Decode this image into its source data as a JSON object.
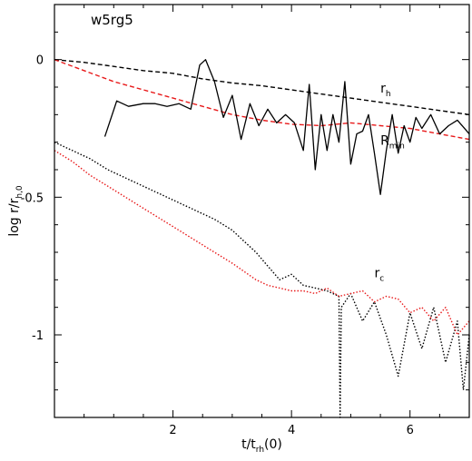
{
  "chart_data": {
    "type": "line",
    "title": "w5rg5",
    "xlabel": {
      "main": "t/t",
      "sub": "rh",
      "suffix": "(0)"
    },
    "ylabel": {
      "main": "log r/r",
      "sub": "h,0"
    },
    "xlim": [
      0,
      7
    ],
    "ylim": [
      -1.3,
      0.2
    ],
    "xticks": [
      2,
      4,
      6
    ],
    "yticks": [
      0,
      -0.5,
      -1
    ],
    "xtick_labels": [
      "2",
      "4",
      "6"
    ],
    "ytick_labels": [
      "0",
      "-0.5",
      "-1"
    ],
    "grid": false,
    "colors": {
      "black": "#000000",
      "red": "#e8191a"
    },
    "curve_labels": [
      {
        "main": "r",
        "sub": "h",
        "x": 5.5,
        "y": -0.12
      },
      {
        "main": "R",
        "sub": "min",
        "x": 5.5,
        "y": -0.31
      },
      {
        "main": "r",
        "sub": "c",
        "x": 5.4,
        "y": -0.79
      }
    ],
    "series": [
      {
        "id": "rh-black",
        "color": "#000000",
        "style": "dashed",
        "x": [
          0,
          0.5,
          1,
          1.5,
          2,
          2.5,
          3,
          3.5,
          4,
          4.5,
          5,
          5.5,
          6,
          6.5,
          7
        ],
        "y": [
          0.0,
          -0.01,
          -0.025,
          -0.04,
          -0.05,
          -0.07,
          -0.085,
          -0.095,
          -0.11,
          -0.125,
          -0.14,
          -0.155,
          -0.17,
          -0.185,
          -0.2
        ]
      },
      {
        "id": "rh-red",
        "color": "#e8191a",
        "style": "dashed",
        "x": [
          0,
          0.5,
          1,
          1.5,
          2,
          2.5,
          3,
          3.5,
          4,
          4.5,
          5,
          5.5,
          6,
          6.5,
          7
        ],
        "y": [
          0.0,
          -0.04,
          -0.08,
          -0.11,
          -0.14,
          -0.17,
          -0.2,
          -0.22,
          -0.235,
          -0.24,
          -0.23,
          -0.24,
          -0.25,
          -0.27,
          -0.29
        ]
      },
      {
        "id": "rmin-black",
        "color": "#000000",
        "style": "solid",
        "x": [
          0.85,
          1.05,
          1.25,
          1.5,
          1.7,
          1.9,
          2.1,
          2.3,
          2.45,
          2.55,
          2.7,
          2.85,
          3.0,
          3.15,
          3.3,
          3.45,
          3.6,
          3.75,
          3.9,
          4.05,
          4.2,
          4.3,
          4.4,
          4.5,
          4.6,
          4.7,
          4.8,
          4.9,
          5.0,
          5.1,
          5.2,
          5.3,
          5.4,
          5.5,
          5.6,
          5.7,
          5.8,
          5.9,
          6.0,
          6.1,
          6.2,
          6.35,
          6.5,
          6.65,
          6.8,
          7.0
        ],
        "y": [
          -0.28,
          -0.15,
          -0.17,
          -0.16,
          -0.16,
          -0.17,
          -0.16,
          -0.18,
          -0.02,
          0.0,
          -0.08,
          -0.21,
          -0.13,
          -0.29,
          -0.16,
          -0.24,
          -0.18,
          -0.23,
          -0.2,
          -0.23,
          -0.33,
          -0.09,
          -0.4,
          -0.2,
          -0.33,
          -0.2,
          -0.3,
          -0.08,
          -0.38,
          -0.27,
          -0.26,
          -0.2,
          -0.34,
          -0.49,
          -0.33,
          -0.2,
          -0.34,
          -0.24,
          -0.3,
          -0.21,
          -0.25,
          -0.2,
          -0.27,
          -0.24,
          -0.22,
          -0.27
        ]
      },
      {
        "id": "rc-black",
        "color": "#000000",
        "style": "dotted",
        "x": [
          0,
          0.3,
          0.6,
          0.9,
          1.2,
          1.5,
          1.8,
          2.1,
          2.4,
          2.7,
          3.0,
          3.2,
          3.4,
          3.6,
          3.8,
          4.0,
          4.2,
          4.4,
          4.6,
          4.8,
          4.82,
          4.84,
          5.0,
          5.2,
          5.4,
          5.6,
          5.8,
          6.0,
          6.2,
          6.4,
          6.6,
          6.8,
          6.9,
          7.0
        ],
        "y": [
          -0.3,
          -0.33,
          -0.36,
          -0.4,
          -0.43,
          -0.46,
          -0.49,
          -0.52,
          -0.55,
          -0.58,
          -0.62,
          -0.66,
          -0.7,
          -0.75,
          -0.8,
          -0.78,
          -0.82,
          -0.83,
          -0.84,
          -0.86,
          -1.3,
          -0.9,
          -0.85,
          -0.95,
          -0.88,
          -1.0,
          -1.15,
          -0.92,
          -1.05,
          -0.9,
          -1.1,
          -0.95,
          -1.2,
          -1.0
        ]
      },
      {
        "id": "rc-red",
        "color": "#e8191a",
        "style": "dotted",
        "x": [
          0,
          0.3,
          0.6,
          0.9,
          1.2,
          1.5,
          1.8,
          2.1,
          2.4,
          2.7,
          3.0,
          3.2,
          3.4,
          3.6,
          3.8,
          4.0,
          4.2,
          4.4,
          4.6,
          4.8,
          5.0,
          5.2,
          5.4,
          5.6,
          5.8,
          6.0,
          6.2,
          6.4,
          6.6,
          6.8,
          7.0
        ],
        "y": [
          -0.33,
          -0.37,
          -0.42,
          -0.46,
          -0.5,
          -0.54,
          -0.58,
          -0.62,
          -0.66,
          -0.7,
          -0.74,
          -0.77,
          -0.8,
          -0.82,
          -0.83,
          -0.84,
          -0.84,
          -0.85,
          -0.83,
          -0.86,
          -0.85,
          -0.84,
          -0.88,
          -0.86,
          -0.87,
          -0.92,
          -0.9,
          -0.95,
          -0.9,
          -1.0,
          -0.95
        ]
      }
    ]
  }
}
